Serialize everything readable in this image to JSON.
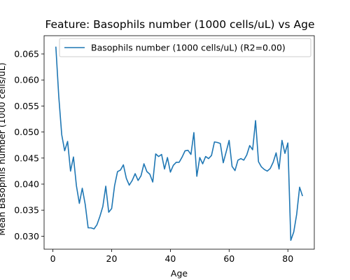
{
  "chart_data": {
    "type": "line",
    "title": "Feature: Basophils number (1000 cells/uL) vs Age",
    "xlabel": "Age",
    "ylabel": "Mean Basophils number (1000 cells/uL)",
    "xlim": [
      -3,
      89
    ],
    "ylim": [
      0.0275,
      0.0685
    ],
    "xticks": [
      0,
      20,
      40,
      60,
      80
    ],
    "xtick_labels": [
      "0",
      "20",
      "40",
      "60",
      "80"
    ],
    "yticks": [
      0.03,
      0.035,
      0.04,
      0.045,
      0.05,
      0.055,
      0.06,
      0.065
    ],
    "ytick_labels": [
      "0.030",
      "0.035",
      "0.040",
      "0.045",
      "0.050",
      "0.055",
      "0.060",
      "0.065"
    ],
    "grid": false,
    "legend_position": "top-right",
    "colors": {
      "series": "#1f77b4",
      "axes": "#000000",
      "background": "#ffffff"
    },
    "series": [
      {
        "name": "Basophils number (1000 cells/uL) (R2=0.00)",
        "x": [
          1,
          2,
          3,
          4,
          5,
          6,
          7,
          8,
          9,
          10,
          11,
          12,
          13,
          14,
          15,
          16,
          17,
          18,
          19,
          20,
          21,
          22,
          23,
          24,
          25,
          26,
          27,
          28,
          29,
          30,
          31,
          32,
          33,
          34,
          35,
          36,
          37,
          38,
          39,
          40,
          41,
          42,
          43,
          44,
          45,
          46,
          47,
          48,
          49,
          50,
          51,
          52,
          53,
          54,
          55,
          56,
          57,
          58,
          59,
          60,
          61,
          62,
          63,
          64,
          65,
          66,
          67,
          68,
          69,
          70,
          71,
          72,
          73,
          74,
          75,
          76,
          77,
          78,
          79,
          80,
          81,
          82,
          83,
          84,
          85
        ],
        "values": [
          0.0664,
          0.0568,
          0.0495,
          0.0464,
          0.0482,
          0.0425,
          0.0452,
          0.0397,
          0.0363,
          0.0392,
          0.0361,
          0.0316,
          0.0316,
          0.0314,
          0.0322,
          0.0338,
          0.0357,
          0.0396,
          0.0346,
          0.0353,
          0.0397,
          0.0424,
          0.0427,
          0.0437,
          0.0411,
          0.0398,
          0.0407,
          0.042,
          0.0407,
          0.0416,
          0.0439,
          0.0424,
          0.0419,
          0.0404,
          0.0458,
          0.0453,
          0.0457,
          0.0429,
          0.0451,
          0.0423,
          0.0436,
          0.0442,
          0.0442,
          0.0452,
          0.0464,
          0.0465,
          0.0457,
          0.0499,
          0.0415,
          0.0451,
          0.0439,
          0.0453,
          0.0449,
          0.0455,
          0.0481,
          0.048,
          0.0478,
          0.0441,
          0.0462,
          0.0484,
          0.0434,
          0.0426,
          0.0446,
          0.0449,
          0.0446,
          0.0456,
          0.0474,
          0.0466,
          0.0522,
          0.0443,
          0.0433,
          0.0428,
          0.0425,
          0.043,
          0.0442,
          0.046,
          0.0429,
          0.0484,
          0.0459,
          0.0479,
          0.0292,
          0.0308,
          0.0342,
          0.0394,
          0.0377
        ]
      }
    ]
  }
}
